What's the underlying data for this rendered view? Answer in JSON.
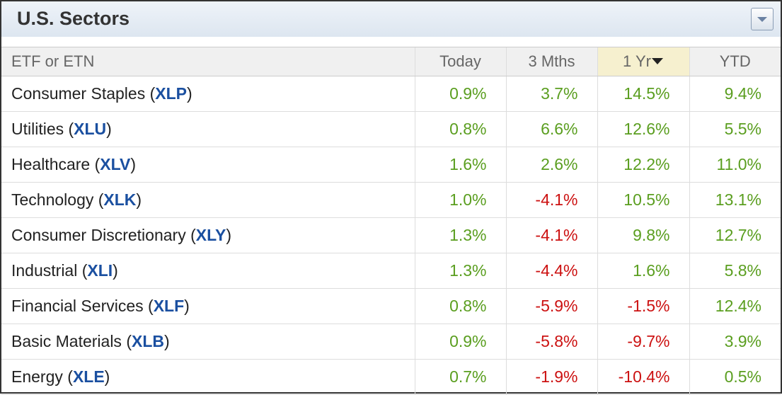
{
  "header": {
    "title": "U.S. Sectors"
  },
  "table": {
    "columns": [
      "ETF or ETN",
      "Today",
      "3 Mths",
      "1 Yr",
      "YTD"
    ],
    "rows": [
      [
        "Consumer Staples (XLP)",
        "0.9%",
        "3.7%",
        "14.5%",
        "9.4%"
      ],
      [
        "Utilities (XLU)",
        "0.8%",
        "6.6%",
        "12.6%",
        "5.5%"
      ],
      [
        "Healthcare (XLV)",
        "1.6%",
        "2.6%",
        "12.2%",
        "11.0%"
      ],
      [
        "Technology (XLK)",
        "1.0%",
        "-4.1%",
        "10.5%",
        "13.1%"
      ],
      [
        "Consumer Discretionary (XLY)",
        "1.3%",
        "-4.1%",
        "9.8%",
        "12.7%"
      ],
      [
        "Industrial (XLI)",
        "1.3%",
        "-4.4%",
        "1.6%",
        "5.8%"
      ],
      [
        "Financial Services (XLF)",
        "0.8%",
        "-5.9%",
        "-1.5%",
        "12.4%"
      ],
      [
        "Basic Materials (XLB)",
        "0.9%",
        "-5.8%",
        "-9.7%",
        "3.9%"
      ],
      [
        "Energy (XLE)",
        "0.7%",
        "-1.9%",
        "-10.4%",
        "0.5%"
      ]
    ]
  }
}
